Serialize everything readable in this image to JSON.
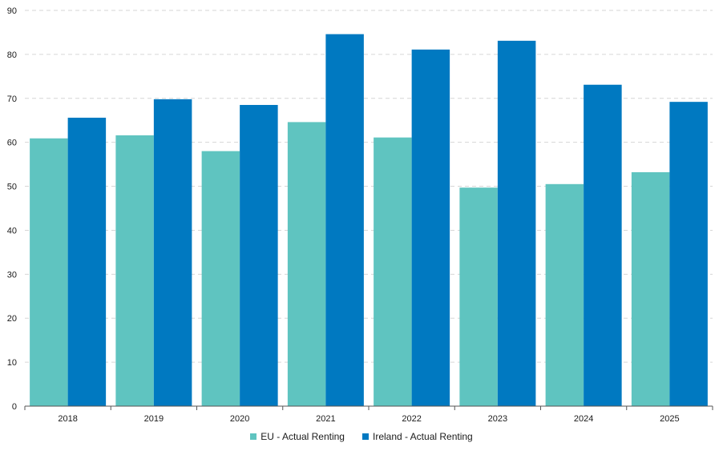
{
  "chart_data": {
    "type": "bar",
    "title": "",
    "xlabel": "",
    "ylabel": "",
    "categories": [
      "2018",
      "2019",
      "2020",
      "2021",
      "2022",
      "2023",
      "2024",
      "2025"
    ],
    "series": [
      {
        "name": "EU - Actual Renting",
        "color": "#5fc4c0",
        "values": [
          60.9,
          61.6,
          58.0,
          64.6,
          61.1,
          49.7,
          50.5,
          53.2
        ]
      },
      {
        "name": "Ireland - Actual Renting",
        "color": "#0079c1",
        "values": [
          65.6,
          69.8,
          68.5,
          84.6,
          81.1,
          83.1,
          73.1,
          69.2
        ]
      }
    ],
    "ylim": [
      0,
      90
    ],
    "yticks": [
      "0",
      "10",
      "20",
      "30",
      "40",
      "50",
      "60",
      "70",
      "80",
      "90"
    ],
    "grid": "horizontal dashed",
    "legend": "bottom-center"
  }
}
